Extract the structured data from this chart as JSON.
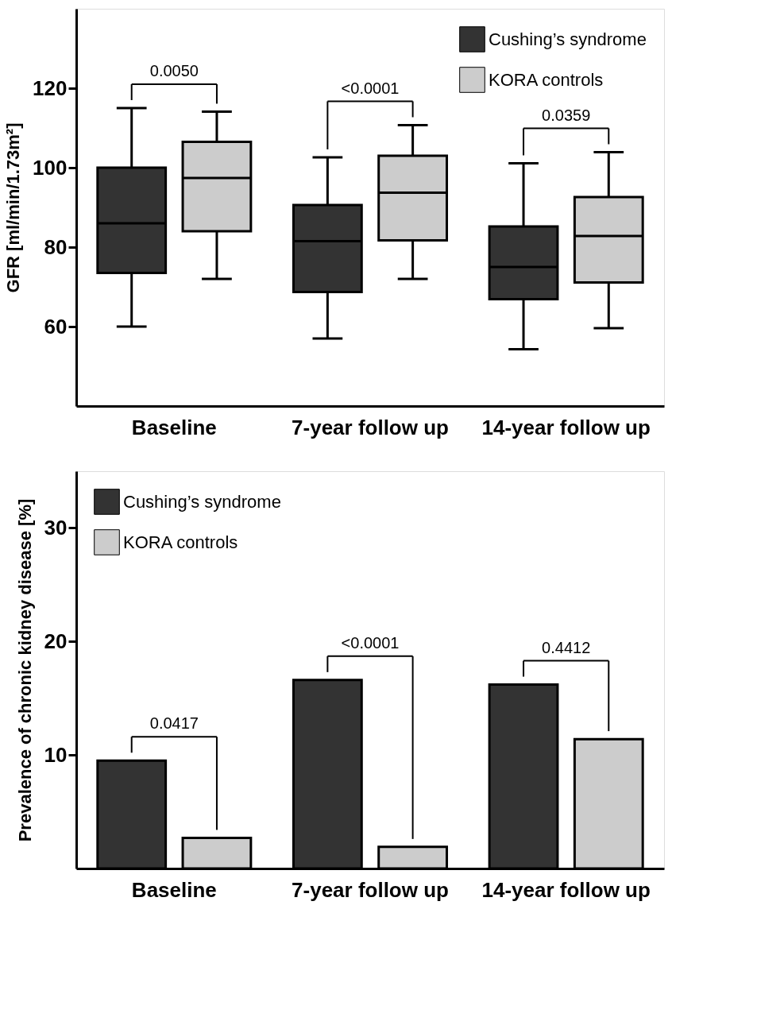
{
  "chart_data": [
    {
      "type": "box",
      "categories": [
        "Baseline",
        "7-year follow up",
        "14-year follow up"
      ],
      "ylabel": "GFR [ml/min/1.73m²]",
      "ylim": [
        40,
        140
      ],
      "yticks": [
        60,
        80,
        100,
        120
      ],
      "grid": false,
      "legend": "top right",
      "series": [
        {
          "name": "Cushing’s syndrome",
          "color": "#333333",
          "boxes": [
            {
              "low": 60,
              "q1": 73.5,
              "median": 86,
              "q3": 100,
              "high": 115
            },
            {
              "low": 57,
              "q1": 68.7,
              "median": 81.5,
              "q3": 90.6,
              "high": 102.6
            },
            {
              "low": 54.3,
              "q1": 66.9,
              "median": 75,
              "q3": 85.2,
              "high": 101.1
            }
          ]
        },
        {
          "name": "KORA controls",
          "color": "#cccccc",
          "boxes": [
            {
              "low": 72,
              "q1": 84,
              "median": 97.4,
              "q3": 106.5,
              "high": 114.1
            },
            {
              "low": 72,
              "q1": 81.7,
              "median": 93.7,
              "q3": 103,
              "high": 110.7
            },
            {
              "low": 59.6,
              "q1": 71.1,
              "median": 82.8,
              "q3": 92.6,
              "high": 103.9
            }
          ]
        }
      ],
      "annotations": [
        "0.0050",
        "<0.0001",
        "0.0359"
      ]
    },
    {
      "type": "bar",
      "categories": [
        "Baseline",
        "7-year follow up",
        "14-year follow up"
      ],
      "ylabel": "Prevalence of chronic kidney disease [%]",
      "ylim": [
        0,
        35
      ],
      "yticks": [
        10,
        20,
        30
      ],
      "grid": false,
      "legend": "top left",
      "series": [
        {
          "name": "Cushing’s syndrome",
          "color": "#333333",
          "values": [
            9.5,
            16.6,
            16.2
          ]
        },
        {
          "name": "KORA controls",
          "color": "#cccccc",
          "values": [
            2.7,
            1.9,
            11.4
          ]
        }
      ],
      "annotations": [
        "0.0417",
        "<0.0001",
        "0.4412"
      ]
    }
  ]
}
